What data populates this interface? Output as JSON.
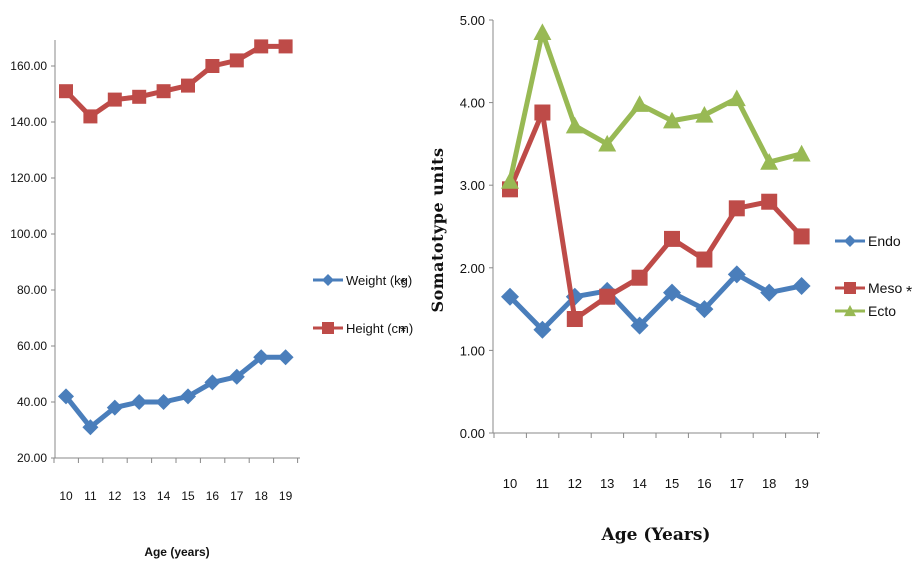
{
  "chart_data": [
    {
      "type": "line",
      "x": [
        10,
        11,
        12,
        13,
        14,
        15,
        16,
        17,
        18,
        19
      ],
      "ylim": [
        20,
        170
      ],
      "yticks": [
        "20.00",
        "40.00",
        "60.00",
        "80.00",
        "100.00",
        "120.00",
        "140.00",
        "160.00"
      ],
      "xlabel": "Age (years)",
      "legend_position": "right",
      "series": [
        {
          "name": "Weight (kg)",
          "marker": "*",
          "color": "#4a7ebb",
          "values": [
            42,
            31,
            38,
            40,
            40,
            42,
            47,
            49,
            56,
            56
          ]
        },
        {
          "name": "Height (cm)",
          "marker": "*",
          "color": "#be4b48",
          "values": [
            151,
            142,
            148,
            149,
            151,
            153,
            160,
            162,
            167,
            167
          ]
        }
      ]
    },
    {
      "type": "line",
      "x": [
        10,
        11,
        12,
        13,
        14,
        15,
        16,
        17,
        18,
        19
      ],
      "ylim": [
        0,
        5
      ],
      "yticks": [
        "0.00",
        "1.00",
        "2.00",
        "3.00",
        "4.00",
        "5.00"
      ],
      "xlabel": "Age (Years)",
      "ylabel": "Somatotype units",
      "legend_position": "right",
      "series": [
        {
          "name": "Endo",
          "marker": "",
          "color": "#4a7ebb",
          "values": [
            1.65,
            1.25,
            1.65,
            1.72,
            1.3,
            1.7,
            1.5,
            1.92,
            1.7,
            1.78
          ]
        },
        {
          "name": "Meso",
          "marker": "*",
          "color": "#be4b48",
          "values": [
            2.95,
            3.88,
            1.38,
            1.65,
            1.88,
            2.35,
            2.1,
            2.72,
            2.8,
            2.38
          ]
        },
        {
          "name": "Ecto",
          "marker": "",
          "color": "#98b954",
          "values": [
            3.05,
            4.85,
            3.72,
            3.5,
            3.98,
            3.78,
            3.85,
            4.05,
            3.28,
            3.38
          ]
        }
      ]
    }
  ]
}
